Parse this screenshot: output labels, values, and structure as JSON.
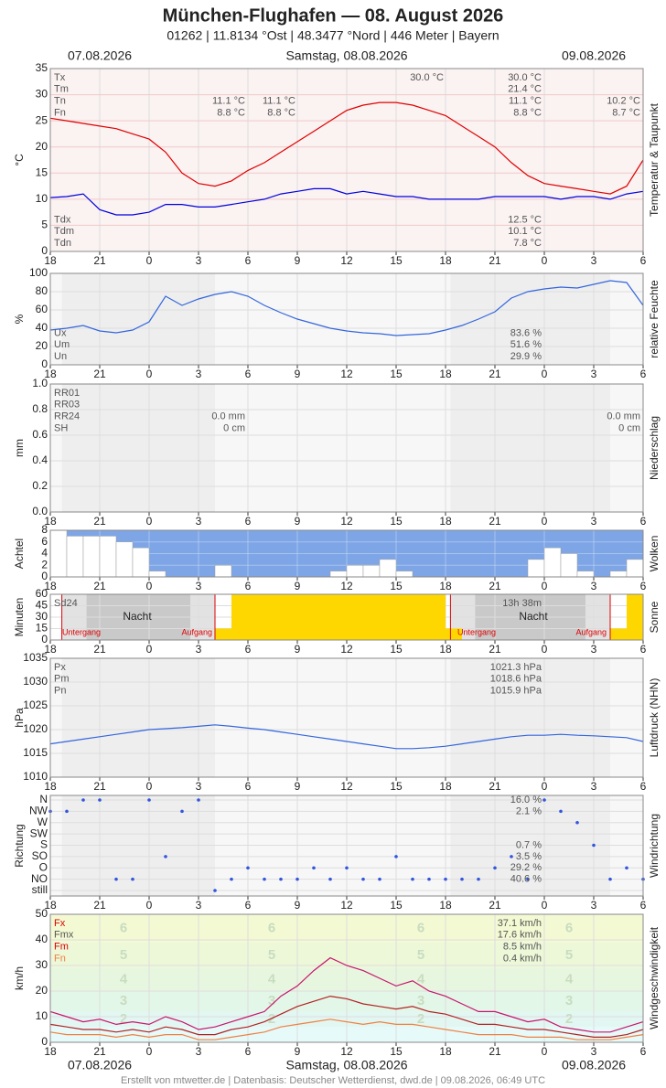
{
  "header": {
    "title": "München-Flughafen  —  08. August 2026",
    "subtitle": "01262  |  11.8134 °Ost  |  48.3477 °Nord  |  446 Meter  |  Bayern",
    "date_left": "07.08.2026",
    "date_center": "Samstag, 08.08.2026",
    "date_right": "09.08.2026"
  },
  "x_axis": {
    "xlim": [
      0,
      36
    ],
    "xticks": [
      {
        "value": 0,
        "label": "18"
      },
      {
        "value": 3,
        "label": "21"
      },
      {
        "value": 6,
        "label": "0"
      },
      {
        "value": 9,
        "label": "3"
      },
      {
        "value": 12,
        "label": "6"
      },
      {
        "value": 15,
        "label": "9"
      },
      {
        "value": 18,
        "label": "12"
      },
      {
        "value": 21,
        "label": "15"
      },
      {
        "value": 24,
        "label": "18"
      },
      {
        "value": 27,
        "label": "21"
      },
      {
        "value": 30,
        "label": "0"
      },
      {
        "value": 33,
        "label": "3"
      },
      {
        "value": 36,
        "label": "6"
      }
    ]
  },
  "chart_data": [
    {
      "type": "line",
      "y_label": "°C",
      "side_label": "Temperatur & Taupunkt",
      "ylim": [
        0,
        35
      ],
      "yticks": [
        0,
        5,
        10,
        15,
        20,
        25,
        30,
        35
      ],
      "x": [
        0,
        1,
        2,
        3,
        4,
        5,
        6,
        7,
        8,
        9,
        10,
        11,
        12,
        13,
        14,
        15,
        16,
        17,
        18,
        19,
        20,
        21,
        22,
        23,
        24,
        25,
        26,
        27,
        28,
        29,
        30,
        31,
        32,
        33,
        34,
        35,
        36
      ],
      "series": [
        {
          "color": "#e00000",
          "values": [
            25.5,
            25,
            24.5,
            24,
            23.5,
            22.5,
            21.5,
            19,
            15,
            13,
            12.5,
            13.5,
            15.5,
            17,
            19,
            21,
            23,
            25,
            27,
            28,
            28.5,
            28.5,
            28,
            27,
            26,
            24,
            22,
            20,
            17,
            14.5,
            13,
            12.5,
            12,
            11.5,
            11,
            12.5,
            17.5
          ]
        },
        {
          "color": "#0000dd",
          "values": [
            10.3,
            10.5,
            11,
            8,
            7,
            7,
            7.5,
            9,
            9,
            8.5,
            8.5,
            9,
            9.5,
            10,
            11,
            11.5,
            12,
            12,
            11,
            11.5,
            11,
            10.5,
            10.5,
            10,
            10,
            10,
            10,
            10.5,
            10.5,
            10.5,
            10.5,
            10,
            10.5,
            10.5,
            10,
            11,
            11.5
          ]
        }
      ],
      "stats": [
        {
          "label": "Tx",
          "text": "30.0 °C"
        },
        {
          "label": "Tm",
          "text": "21.4 °C"
        },
        {
          "label": "Tn",
          "text": "11.1 °C"
        },
        {
          "label": "Fn",
          "text": "8.8 °C"
        }
      ],
      "stats_low": [
        {
          "label": "Tdx",
          "text": "12.5 °C"
        },
        {
          "label": "Tdm",
          "text": "10.1 °C"
        },
        {
          "label": "Tdn",
          "text": "7.8 °C"
        }
      ],
      "annotations": [
        "30.0 °C",
        "11.1 °C",
        "8.8 °C",
        "11.1 °C",
        "8.8 °C",
        "10.2 °C",
        "8.7 °C"
      ]
    },
    {
      "type": "line",
      "y_label": "%",
      "side_label": "relative Feuchte",
      "ylim": [
        0,
        100
      ],
      "yticks": [
        0,
        20,
        40,
        60,
        80,
        100
      ],
      "x": [
        0,
        1,
        2,
        3,
        4,
        5,
        6,
        7,
        8,
        9,
        10,
        11,
        12,
        13,
        14,
        15,
        16,
        17,
        18,
        19,
        20,
        21,
        22,
        23,
        24,
        25,
        26,
        27,
        28,
        29,
        30,
        31,
        32,
        33,
        34,
        35,
        36
      ],
      "series": [
        {
          "color": "#3366dd",
          "values": [
            38,
            40,
            43,
            37,
            35,
            38,
            47,
            75,
            65,
            72,
            77,
            80,
            75,
            65,
            57,
            50,
            45,
            40,
            37,
            35,
            34,
            32,
            33,
            34,
            38,
            43,
            50,
            58,
            73,
            80,
            83,
            85,
            84,
            88,
            92,
            90,
            65
          ]
        }
      ],
      "stats_low": [
        {
          "label": "Ux",
          "text": "83.6 %"
        },
        {
          "label": "Um",
          "text": "51.6 %"
        },
        {
          "label": "Un",
          "text": "29.9 %"
        }
      ]
    },
    {
      "type": "bar",
      "y_label": "mm",
      "side_label": "Niederschlag",
      "ylim": [
        0,
        1
      ],
      "yticks": [
        {
          "value": 0,
          "label": "0.0"
        },
        {
          "value": 0.2,
          "label": "0.2"
        },
        {
          "value": 0.4,
          "label": "0.4"
        },
        {
          "value": 0.6,
          "label": "0.6"
        },
        {
          "value": 0.8,
          "label": "0.8"
        },
        {
          "value": 1,
          "label": "1.0"
        }
      ],
      "stats": [
        {
          "label": "RR01"
        },
        {
          "label": "RR03"
        },
        {
          "label": "RR24"
        },
        {
          "label": "SH"
        }
      ],
      "annotations": [
        "0.0 mm",
        "0 cm",
        "0.0 mm",
        "0 cm"
      ]
    },
    {
      "type": "bar",
      "y_label": "Achtel",
      "side_label": "Wolken",
      "ylim": [
        0,
        8
      ],
      "yticks": [
        0,
        2,
        4,
        6,
        8
      ],
      "color": "#ffffff",
      "x": [
        0,
        1,
        2,
        3,
        4,
        5,
        6,
        7,
        8,
        9,
        10,
        11,
        12,
        13,
        14,
        15,
        16,
        17,
        18,
        19,
        20,
        21,
        22,
        23,
        24,
        25,
        26,
        27,
        28,
        29,
        30,
        31,
        32,
        33,
        34,
        35
      ],
      "values": [
        8,
        7,
        7,
        7,
        6,
        5,
        1,
        0,
        0,
        0,
        2,
        0,
        0,
        0,
        0,
        0,
        0,
        1,
        2,
        2,
        3,
        1,
        0,
        0,
        0,
        0,
        0,
        0,
        0,
        3,
        5,
        4,
        1,
        0,
        1,
        3
      ]
    },
    {
      "type": "bar",
      "y_label": "Minuten",
      "side_label": "Sonne",
      "ylim": [
        0,
        60
      ],
      "yticks": [
        0,
        15,
        30,
        45,
        60
      ],
      "color": "#ffd700",
      "x": [
        0,
        1,
        2,
        3,
        4,
        5,
        6,
        7,
        8,
        9,
        10,
        11,
        12,
        13,
        14,
        15,
        16,
        17,
        18,
        19,
        20,
        21,
        22,
        23,
        24,
        25,
        26,
        27,
        28,
        29,
        30,
        31,
        32,
        33,
        34,
        35
      ],
      "values": [
        0,
        0,
        0,
        0,
        0,
        0,
        0,
        0,
        0,
        0,
        15,
        60,
        60,
        60,
        60,
        60,
        60,
        60,
        60,
        60,
        60,
        60,
        60,
        60,
        15,
        0,
        0,
        0,
        0,
        0,
        0,
        0,
        0,
        0,
        15,
        60
      ],
      "stats": [
        {
          "label": "Sd24",
          "text": "13h 38m"
        }
      ],
      "annotations": [
        "Nacht",
        "Untergang",
        "Aufgang",
        "Nacht",
        "Untergang",
        "Aufgang"
      ]
    },
    {
      "type": "line",
      "y_label": "hPa",
      "side_label": "Luftdruck (NHN)",
      "ylim": [
        1010,
        1035
      ],
      "yticks": [
        1010,
        1015,
        1020,
        1025,
        1030,
        1035
      ],
      "x": [
        0,
        1,
        2,
        3,
        4,
        5,
        6,
        7,
        8,
        9,
        10,
        11,
        12,
        13,
        14,
        15,
        16,
        17,
        18,
        19,
        20,
        21,
        22,
        23,
        24,
        25,
        26,
        27,
        28,
        29,
        30,
        31,
        32,
        33,
        34,
        35,
        36
      ],
      "series": [
        {
          "color": "#3366dd",
          "values": [
            1017,
            1017.5,
            1018,
            1018.5,
            1019,
            1019.5,
            1020,
            1020.2,
            1020.4,
            1020.7,
            1021,
            1020.7,
            1020.3,
            1020,
            1019.5,
            1019,
            1018.5,
            1018,
            1017.5,
            1017,
            1016.5,
            1016,
            1016,
            1016.2,
            1016.5,
            1017,
            1017.5,
            1018,
            1018.5,
            1018.8,
            1018.8,
            1019,
            1018.8,
            1018.7,
            1018.5,
            1018.3,
            1017.5
          ]
        }
      ],
      "stats": [
        {
          "label": "Px",
          "text": "1021.3 hPa"
        },
        {
          "label": "Pm",
          "text": "1018.6 hPa"
        },
        {
          "label": "Pn",
          "text": "1015.9 hPa"
        }
      ]
    },
    {
      "type": "scatter",
      "y_label": "Richtung",
      "side_label": "Windrichtung",
      "color": "#3355dd",
      "categories": [
        "N",
        "NW",
        "W",
        "SW",
        "S",
        "SO",
        "O",
        "NO",
        "still"
      ],
      "shares": [
        "16.0 %",
        "2.1 %",
        null,
        null,
        "0.7 %",
        "3.5 %",
        "29.2 %",
        "40.6 %",
        null
      ],
      "x": [
        0,
        1,
        2,
        3,
        4,
        5,
        6,
        7,
        8,
        9,
        10,
        11,
        12,
        13,
        14,
        15,
        16,
        17,
        18,
        19,
        20,
        21,
        22,
        23,
        24,
        25,
        26,
        27,
        28,
        29,
        30,
        31,
        32,
        33,
        34,
        35,
        36
      ],
      "values": [
        "NW",
        "NW",
        "N",
        "N",
        "NO",
        "NO",
        "N",
        "SO",
        "NW",
        "N",
        "still",
        "NO",
        "O",
        "NO",
        "NO",
        "NO",
        "O",
        "NO",
        "O",
        "NO",
        "NO",
        "SO",
        "NO",
        "NO",
        "NO",
        "NO",
        "NO",
        "O",
        "SO",
        "NO",
        "N",
        "NW",
        "W",
        "S",
        "NO",
        "O",
        "NO"
      ]
    },
    {
      "type": "line",
      "y_label": "km/h",
      "side_label": "Windgeschwindigkeit",
      "ylim": [
        0,
        50
      ],
      "yticks": [
        0,
        10,
        20,
        30,
        40,
        50
      ],
      "beaufort": [
        {
          "label": 2,
          "from": 6,
          "to": 12,
          "color": "#e3f7f2"
        },
        {
          "label": 3,
          "from": 12,
          "to": 20,
          "color": "#e3f7e8"
        },
        {
          "label": 4,
          "from": 20,
          "to": 29,
          "color": "#e7f7df"
        },
        {
          "label": 5,
          "from": 29,
          "to": 39,
          "color": "#edf8d9"
        },
        {
          "label": 6,
          "from": 39,
          "to": 50,
          "color": "#f3f9d3"
        }
      ],
      "x": [
        0,
        1,
        2,
        3,
        4,
        5,
        6,
        7,
        8,
        9,
        10,
        11,
        12,
        13,
        14,
        15,
        16,
        17,
        18,
        19,
        20,
        21,
        22,
        23,
        24,
        25,
        26,
        27,
        28,
        29,
        30,
        31,
        32,
        33,
        34,
        35,
        36
      ],
      "series": [
        {
          "color": "#c8146e",
          "values": [
            12,
            10,
            8,
            9,
            7,
            8,
            7,
            10,
            8,
            5,
            6,
            8,
            10,
            12,
            18,
            22,
            28,
            33,
            30,
            28,
            25,
            22,
            24,
            20,
            18,
            15,
            12,
            12,
            10,
            8,
            9,
            6,
            5,
            4,
            4,
            6,
            8
          ]
        },
        {
          "color": "#b22222",
          "values": [
            7,
            6,
            5,
            5,
            4,
            5,
            4,
            6,
            5,
            3,
            3,
            5,
            6,
            8,
            11,
            14,
            16,
            18,
            17,
            15,
            14,
            13,
            14,
            12,
            11,
            9,
            7,
            7,
            6,
            5,
            5,
            4,
            3,
            2,
            2,
            3,
            5
          ]
        },
        {
          "color": "#f08040",
          "values": [
            4,
            3,
            3,
            3,
            2,
            3,
            2,
            3,
            3,
            1,
            1,
            2,
            3,
            4,
            6,
            7,
            8,
            9,
            8,
            7,
            8,
            7,
            7,
            6,
            5,
            4,
            3,
            3,
            3,
            2,
            2,
            2,
            1,
            1,
            1,
            2,
            3
          ]
        }
      ],
      "stats": [
        {
          "label": "Fx",
          "text": "37.1 km/h",
          "color": "#dd0000"
        },
        {
          "label": "Fmx",
          "text": "17.6 km/h"
        },
        {
          "label": "Fm",
          "text": "8.5 km/h",
          "color": "#dd0000"
        },
        {
          "label": "Fn",
          "text": "0.4 km/h",
          "color": "#f08040"
        }
      ]
    }
  ],
  "footer": "Erstellt von mtwetter.de | Datenbasis: Deutscher Wetterdienst, dwd.de | 09.08.2026, 06:49 UTC"
}
